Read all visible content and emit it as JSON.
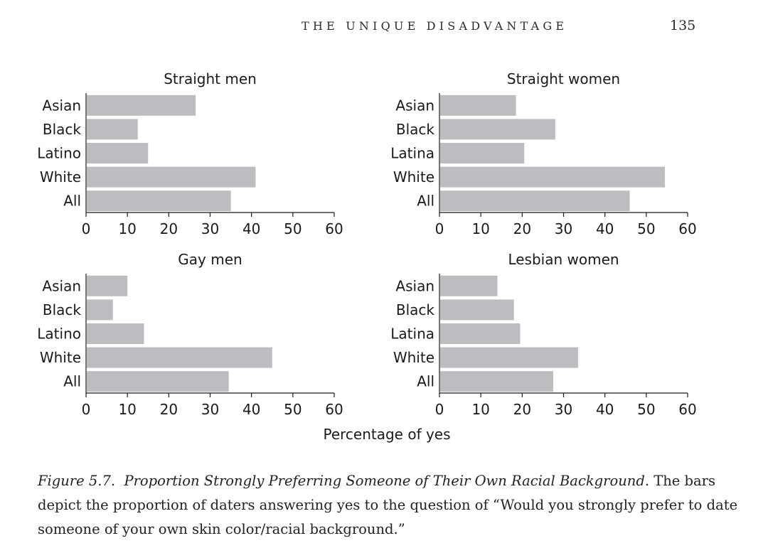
{
  "running_head": "THE UNIQUE DISADVANTAGE",
  "page_number": "135",
  "chart_data": [
    {
      "type": "bar",
      "orientation": "horizontal",
      "title": "Straight men",
      "categories": [
        "Asian",
        "Black",
        "Latino",
        "White",
        "All"
      ],
      "values": [
        26.5,
        12.5,
        15,
        41,
        35
      ],
      "xlim": [
        0,
        60
      ],
      "xticks": [
        0,
        10,
        20,
        30,
        40,
        50,
        60
      ],
      "grid": false,
      "bar_color": "#bdbdc1"
    },
    {
      "type": "bar",
      "orientation": "horizontal",
      "title": "Straight women",
      "categories": [
        "Asian",
        "Black",
        "Latina",
        "White",
        "All"
      ],
      "values": [
        18.5,
        28,
        20.5,
        54.5,
        46
      ],
      "xlim": [
        0,
        60
      ],
      "xticks": [
        0,
        10,
        20,
        30,
        40,
        50,
        60
      ],
      "grid": false,
      "bar_color": "#bdbdc1"
    },
    {
      "type": "bar",
      "orientation": "horizontal",
      "title": "Gay men",
      "categories": [
        "Asian",
        "Black",
        "Latino",
        "White",
        "All"
      ],
      "values": [
        10,
        6.5,
        14,
        45,
        34.5
      ],
      "xlim": [
        0,
        60
      ],
      "xticks": [
        0,
        10,
        20,
        30,
        40,
        50,
        60
      ],
      "grid": false,
      "bar_color": "#bdbdc1"
    },
    {
      "type": "bar",
      "orientation": "horizontal",
      "title": "Lesbian women",
      "categories": [
        "Asian",
        "Black",
        "Latina",
        "White",
        "All"
      ],
      "values": [
        14,
        18,
        19.5,
        33.5,
        27.5
      ],
      "xlim": [
        0,
        60
      ],
      "xticks": [
        0,
        10,
        20,
        30,
        40,
        50,
        60
      ],
      "grid": false,
      "bar_color": "#bdbdc1"
    }
  ],
  "xlabel": "Percentage of yes",
  "caption": {
    "label": "Figure 5.7.",
    "title": "Proportion Strongly Preferring Someone of Their Own Racial Background.",
    "body": "The bars depict the proportion of daters answering yes to the question of “Would you strongly prefer to date someone of your own skin color/racial background.”"
  }
}
